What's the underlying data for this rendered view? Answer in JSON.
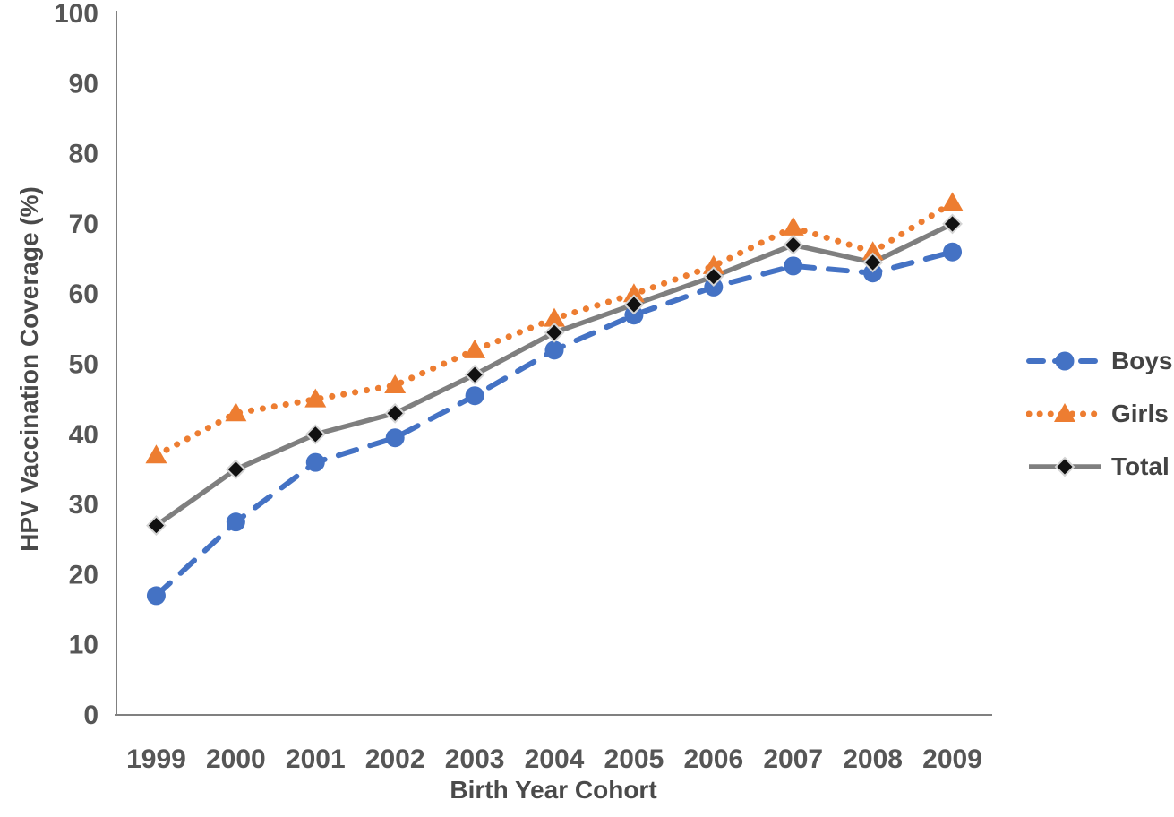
{
  "chart_data": {
    "type": "line",
    "title": "",
    "xlabel": "Birth Year Cohort",
    "ylabel": "HPV Vaccination Coverage (%)",
    "categories": [
      "1999",
      "2000",
      "2001",
      "2002",
      "2003",
      "2004",
      "2005",
      "2006",
      "2007",
      "2008",
      "2009"
    ],
    "series": [
      {
        "name": "Boys",
        "color": "#4472C4",
        "line_style": "dashed",
        "marker": "circle",
        "marker_color": "#4472C4",
        "values": [
          17,
          27.5,
          36,
          39.5,
          45.5,
          52,
          57,
          61,
          64,
          63,
          66
        ]
      },
      {
        "name": "Girls",
        "color": "#ED7D31",
        "line_style": "dotted",
        "marker": "triangle",
        "marker_color": "#ED7D31",
        "values": [
          37,
          43,
          45,
          47,
          52,
          56.5,
          60,
          64,
          69.5,
          66,
          73
        ]
      },
      {
        "name": "Total",
        "color": "#7F7F7F",
        "line_style": "solid",
        "marker": "diamond",
        "marker_color": "#111111",
        "values": [
          27,
          35,
          40,
          43,
          48.5,
          54.5,
          58.5,
          62.5,
          67,
          64.5,
          70
        ]
      }
    ],
    "ylim": [
      0,
      100
    ],
    "yticks": [
      0,
      10,
      20,
      30,
      40,
      50,
      60,
      70,
      80,
      90,
      100
    ],
    "grid": false,
    "legend_position": "right",
    "axis_color": "#808080",
    "text_color": "#565656"
  }
}
